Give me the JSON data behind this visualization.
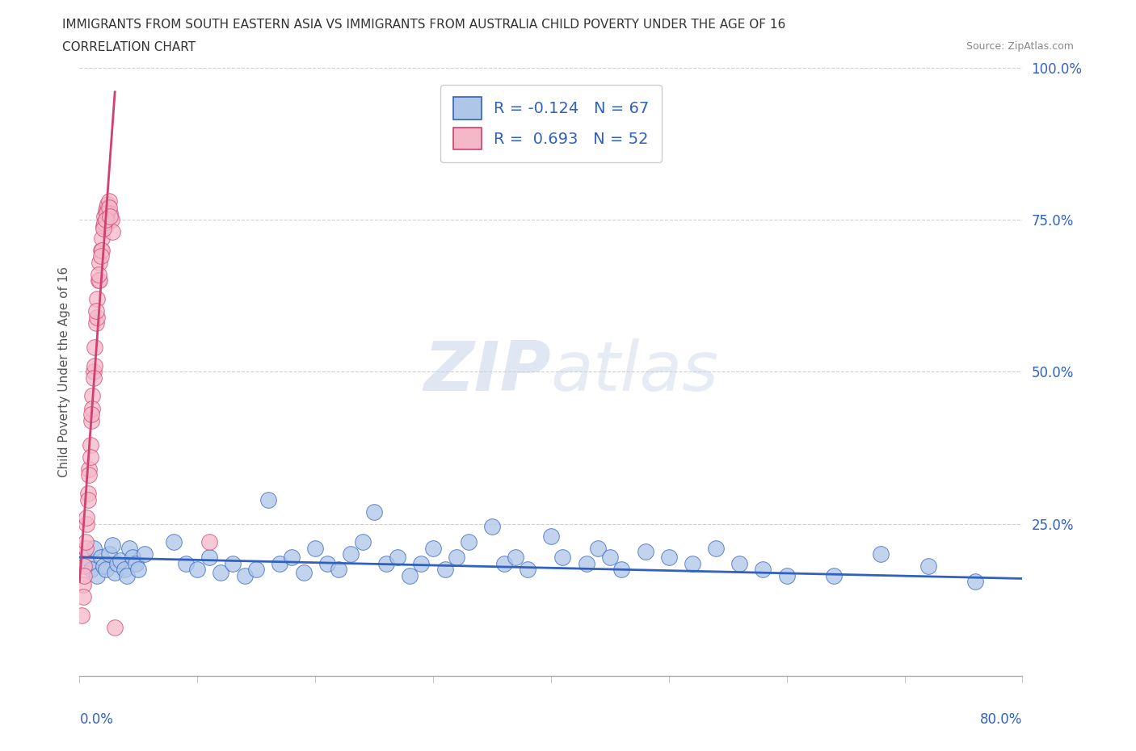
{
  "title": "IMMIGRANTS FROM SOUTH EASTERN ASIA VS IMMIGRANTS FROM AUSTRALIA CHILD POVERTY UNDER THE AGE OF 16",
  "subtitle": "CORRELATION CHART",
  "source": "Source: ZipAtlas.com",
  "ylabel": "Child Poverty Under the Age of 16",
  "watermark": "ZIPatlas",
  "blue_R": -0.124,
  "blue_N": 67,
  "pink_R": 0.693,
  "pink_N": 52,
  "blue_color": "#aec6e8",
  "pink_color": "#f5b8c8",
  "blue_line_color": "#3060c0",
  "pink_line_color": "#d04070",
  "legend_blue_label": "R = -0.124   N = 67",
  "legend_pink_label": "R =  0.693   N = 52",
  "xlim": [
    0.0,
    0.8
  ],
  "ylim": [
    0.0,
    1.0
  ],
  "grid_color": "#d0d0d0",
  "background_color": "#ffffff",
  "blue_scatter_x": [
    0.005,
    0.008,
    0.01,
    0.012,
    0.015,
    0.018,
    0.02,
    0.022,
    0.025,
    0.028,
    0.03,
    0.032,
    0.035,
    0.038,
    0.04,
    0.042,
    0.045,
    0.048,
    0.05,
    0.055,
    0.08,
    0.09,
    0.1,
    0.11,
    0.12,
    0.13,
    0.14,
    0.15,
    0.16,
    0.17,
    0.18,
    0.19,
    0.2,
    0.21,
    0.22,
    0.23,
    0.24,
    0.25,
    0.26,
    0.27,
    0.28,
    0.29,
    0.3,
    0.31,
    0.32,
    0.33,
    0.35,
    0.36,
    0.37,
    0.38,
    0.4,
    0.41,
    0.43,
    0.44,
    0.45,
    0.46,
    0.48,
    0.5,
    0.52,
    0.54,
    0.56,
    0.58,
    0.6,
    0.64,
    0.68,
    0.72,
    0.76
  ],
  "blue_scatter_y": [
    0.195,
    0.185,
    0.175,
    0.21,
    0.165,
    0.195,
    0.18,
    0.175,
    0.2,
    0.215,
    0.17,
    0.185,
    0.19,
    0.175,
    0.165,
    0.21,
    0.195,
    0.185,
    0.175,
    0.2,
    0.22,
    0.185,
    0.175,
    0.195,
    0.17,
    0.185,
    0.165,
    0.175,
    0.29,
    0.185,
    0.195,
    0.17,
    0.21,
    0.185,
    0.175,
    0.2,
    0.22,
    0.27,
    0.185,
    0.195,
    0.165,
    0.185,
    0.21,
    0.175,
    0.195,
    0.22,
    0.245,
    0.185,
    0.195,
    0.175,
    0.23,
    0.195,
    0.185,
    0.21,
    0.195,
    0.175,
    0.205,
    0.195,
    0.185,
    0.21,
    0.185,
    0.175,
    0.165,
    0.165,
    0.2,
    0.18,
    0.155
  ],
  "pink_scatter_x": [
    0.002,
    0.003,
    0.004,
    0.005,
    0.006,
    0.007,
    0.008,
    0.009,
    0.01,
    0.011,
    0.012,
    0.013,
    0.014,
    0.015,
    0.016,
    0.017,
    0.018,
    0.019,
    0.02,
    0.021,
    0.022,
    0.023,
    0.024,
    0.025,
    0.026,
    0.027,
    0.028,
    0.003,
    0.005,
    0.007,
    0.009,
    0.011,
    0.013,
    0.015,
    0.017,
    0.019,
    0.021,
    0.023,
    0.025,
    0.01,
    0.012,
    0.018,
    0.008,
    0.014,
    0.006,
    0.004,
    0.02,
    0.016,
    0.022,
    0.026,
    0.03,
    0.11
  ],
  "pink_scatter_y": [
    0.1,
    0.15,
    0.18,
    0.21,
    0.25,
    0.3,
    0.34,
    0.38,
    0.42,
    0.46,
    0.5,
    0.54,
    0.58,
    0.62,
    0.65,
    0.68,
    0.7,
    0.72,
    0.74,
    0.755,
    0.765,
    0.77,
    0.775,
    0.78,
    0.76,
    0.75,
    0.73,
    0.13,
    0.22,
    0.29,
    0.36,
    0.44,
    0.51,
    0.59,
    0.65,
    0.7,
    0.745,
    0.76,
    0.77,
    0.43,
    0.49,
    0.69,
    0.33,
    0.6,
    0.26,
    0.165,
    0.735,
    0.66,
    0.75,
    0.755,
    0.08,
    0.22
  ],
  "pink_line_x": [
    0.0,
    0.03
  ],
  "pink_line_y": [
    0.155,
    0.96
  ],
  "blue_line_x": [
    0.0,
    0.8
  ],
  "blue_line_y": [
    0.195,
    0.16
  ]
}
